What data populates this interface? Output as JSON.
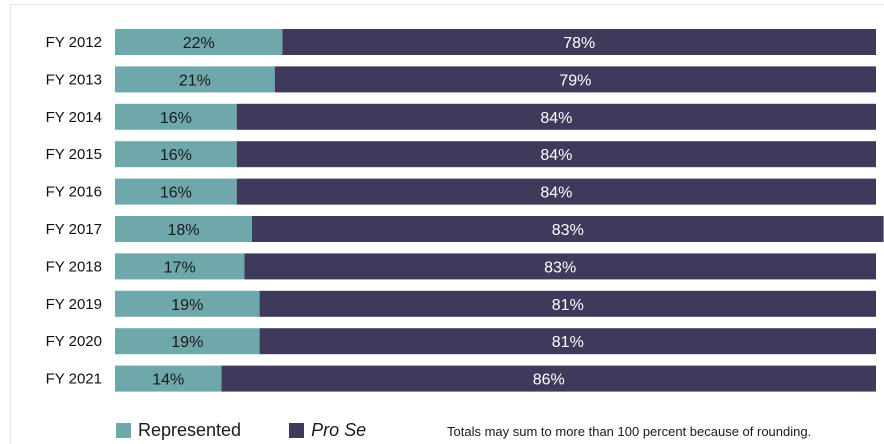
{
  "chart_data": {
    "type": "bar",
    "orientation": "horizontal",
    "stacked": true,
    "categories": [
      "FY 2012",
      "FY 2013",
      "FY 2014",
      "FY 2015",
      "FY 2016",
      "FY 2017",
      "FY 2018",
      "FY 2019",
      "FY 2020",
      "FY 2021"
    ],
    "series": [
      {
        "name": "Represented",
        "color": "#6fa8aa",
        "values": [
          22,
          21,
          16,
          16,
          16,
          18,
          17,
          19,
          19,
          14
        ],
        "labels": [
          "22%",
          "21%",
          "16%",
          "16%",
          "16%",
          "18%",
          "17%",
          "19%",
          "19%",
          "14%"
        ],
        "label_color": "#1a1a1a"
      },
      {
        "name": "Pro Se",
        "color": "#3d3a5c",
        "values": [
          78,
          79,
          84,
          84,
          84,
          83,
          83,
          81,
          81,
          86
        ],
        "labels": [
          "78%",
          "79%",
          "84%",
          "84%",
          "84%",
          "83%",
          "83%",
          "81%",
          "81%",
          "86%"
        ],
        "label_color": "#ffffff"
      }
    ],
    "xlim": [
      0,
      100
    ],
    "legend_position": "bottom-left",
    "grid": false
  },
  "legend": {
    "represented_label": "Represented",
    "prose_label": "Pro Se",
    "represented_color": "#6fa8aa",
    "prose_color": "#3d3a5c"
  },
  "footnote": "Totals may sum to more than 100 percent because of rounding."
}
